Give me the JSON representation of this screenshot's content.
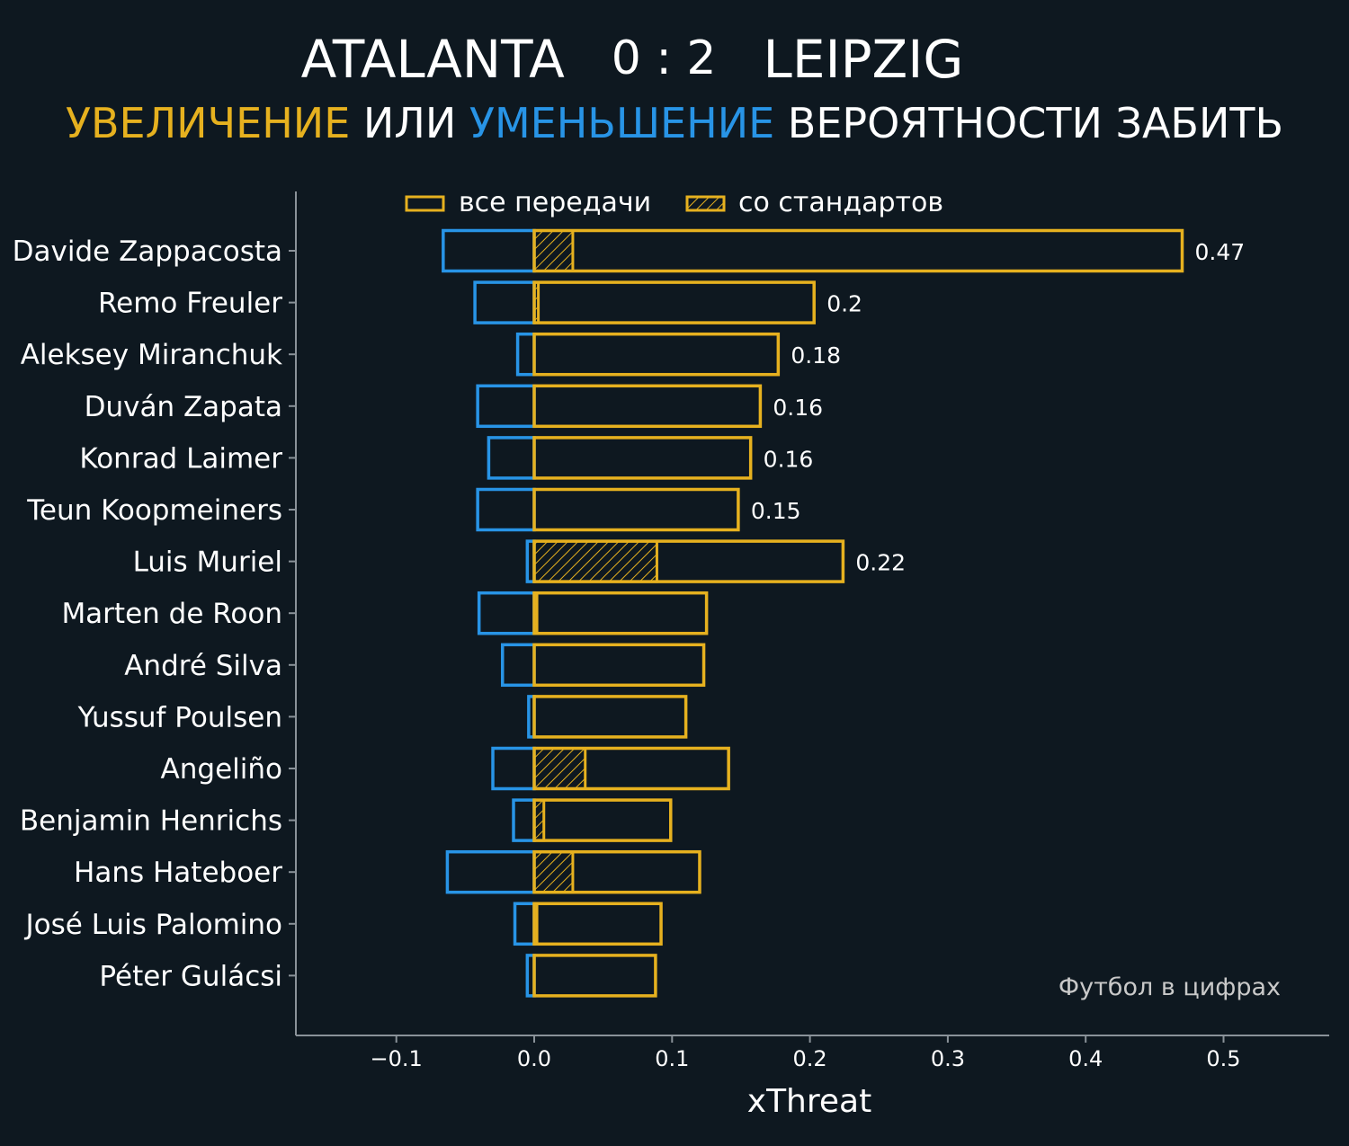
{
  "header": {
    "home_team": "ATALANTA",
    "score": "0 : 2",
    "away_team": "LEIPZIG",
    "subtitle_part1": "УВЕЛИЧЕНИЕ",
    "subtitle_part2": " ИЛИ ",
    "subtitle_part3": "УМЕНЬШЕНИЕ",
    "subtitle_part4": " ВЕРОЯТНОСТИ ЗАБИТЬ"
  },
  "legend": {
    "all_passes": "все передачи",
    "set_pieces": "со стандартов"
  },
  "watermark": "Футбол в цифрах",
  "colors": {
    "background": "#0e1820",
    "positive": "#e6b11f",
    "negative": "#2894e6",
    "text": "#ffffff",
    "axis": "#8a9299",
    "watermark": "#c9c9c9"
  },
  "chart_data": {
    "type": "bar",
    "orientation": "horizontal",
    "xlabel": "xThreat",
    "xlim": [
      -0.17,
      0.58
    ],
    "xticks": [
      -0.1,
      0.0,
      0.1,
      0.2,
      0.3,
      0.4,
      0.5
    ],
    "xtick_labels": [
      "−0.1",
      "0.0",
      "0.1",
      "0.2",
      "0.3",
      "0.4",
      "0.5"
    ],
    "grid": false,
    "legend_position": "top",
    "players": [
      {
        "name": "Davide Zappacosta",
        "positive": 0.47,
        "negative": -0.066,
        "set_piece": 0.028,
        "label": "0.47"
      },
      {
        "name": "Remo Freuler",
        "positive": 0.203,
        "negative": -0.043,
        "set_piece": 0.003,
        "label": "0.2"
      },
      {
        "name": "Aleksey Miranchuk",
        "positive": 0.177,
        "negative": -0.012,
        "set_piece": 0.0,
        "label": "0.18"
      },
      {
        "name": "Duván Zapata",
        "positive": 0.164,
        "negative": -0.041,
        "set_piece": 0.0,
        "label": "0.16"
      },
      {
        "name": "Konrad Laimer",
        "positive": 0.157,
        "negative": -0.033,
        "set_piece": 0.0,
        "label": "0.16"
      },
      {
        "name": "Teun Koopmeiners",
        "positive": 0.148,
        "negative": -0.041,
        "set_piece": 0.0,
        "label": "0.15"
      },
      {
        "name": "Luis Muriel",
        "positive": 0.224,
        "negative": -0.005,
        "set_piece": 0.089,
        "label": "0.22"
      },
      {
        "name": "Marten de Roon",
        "positive": 0.125,
        "negative": -0.04,
        "set_piece": 0.002,
        "label": ""
      },
      {
        "name": "André Silva",
        "positive": 0.123,
        "negative": -0.023,
        "set_piece": 0.0,
        "label": ""
      },
      {
        "name": "Yussuf Poulsen",
        "positive": 0.11,
        "negative": -0.004,
        "set_piece": 0.0,
        "label": ""
      },
      {
        "name": "Angeliño",
        "positive": 0.141,
        "negative": -0.03,
        "set_piece": 0.037,
        "label": ""
      },
      {
        "name": "Benjamin Henrichs",
        "positive": 0.099,
        "negative": -0.015,
        "set_piece": 0.007,
        "label": ""
      },
      {
        "name": "Hans Hateboer",
        "positive": 0.12,
        "negative": -0.063,
        "set_piece": 0.028,
        "label": ""
      },
      {
        "name": "José Luis Palomino",
        "positive": 0.092,
        "negative": -0.014,
        "set_piece": 0.002,
        "label": ""
      },
      {
        "name": "Péter Gulácsi",
        "positive": 0.088,
        "negative": -0.005,
        "set_piece": 0.0,
        "label": ""
      }
    ]
  }
}
